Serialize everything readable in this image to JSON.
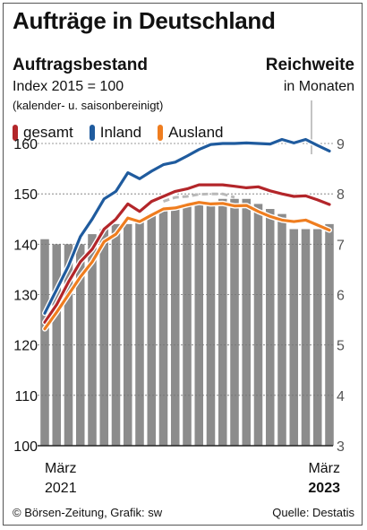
{
  "header": {
    "title": "Aufträge in Deutschland",
    "subtitle": "Auftragsbestand",
    "index_label": "Index 2015 = 100",
    "note": "(kalender- u. saisonbereinigt)",
    "reichweite_title": "Reichweite",
    "reichweite_sub": "in Monaten"
  },
  "legend": [
    {
      "label": "gesamt",
      "color": "#b3262a"
    },
    {
      "label": "Inland",
      "color": "#1f5b9e"
    },
    {
      "label": "Ausland",
      "color": "#ef7d1f"
    }
  ],
  "footer": {
    "source_left": "© Börsen-Zeitung, Grafik: sw",
    "source_right": "Quelle: Destatis"
  },
  "chart_data": {
    "type": "line",
    "x_start_label": "März\n2021",
    "x_end_label": "März\n2023",
    "x": [
      "2021-03",
      "2021-04",
      "2021-05",
      "2021-06",
      "2021-07",
      "2021-08",
      "2021-09",
      "2021-10",
      "2021-11",
      "2021-12",
      "2022-01",
      "2022-02",
      "2022-03",
      "2022-04",
      "2022-05",
      "2022-06",
      "2022-07",
      "2022-08",
      "2022-09",
      "2022-10",
      "2022-11",
      "2022-12",
      "2023-01",
      "2023-02",
      "2023-03"
    ],
    "left_axis": {
      "ylim": [
        100,
        160
      ],
      "ticks": [
        100,
        110,
        120,
        130,
        140,
        150,
        160
      ]
    },
    "right_axis": {
      "label": "Reichweite in Monaten",
      "ylim": [
        3,
        9
      ],
      "ticks": [
        3,
        4,
        5,
        6,
        7,
        8,
        9
      ]
    },
    "grid": true,
    "bars": {
      "name": "Reichweite in Monaten",
      "axis": "right",
      "color": "#8c8c8c",
      "values": [
        7.1,
        7.0,
        7.0,
        7.0,
        7.2,
        7.3,
        7.4,
        7.4,
        7.5,
        7.6,
        7.7,
        7.7,
        7.8,
        7.8,
        7.8,
        7.9,
        7.9,
        7.9,
        7.8,
        7.7,
        7.6,
        7.3,
        7.3,
        7.3,
        7.4
      ]
    },
    "series": [
      {
        "name": "gesamt",
        "color": "#b3262a",
        "values": [
          124.5,
          128,
          132.5,
          136.5,
          139,
          143,
          145,
          148,
          146.5,
          148.5,
          149.5,
          150.5,
          151,
          151.8,
          151.8,
          151.8,
          151.5,
          151.2,
          151.4,
          150.6,
          150,
          149.5,
          149.6,
          148.8,
          147.9
        ]
      },
      {
        "name": "Inland",
        "color": "#1f5b9e",
        "values": [
          126.3,
          131,
          135.7,
          141.5,
          145,
          149,
          150.5,
          154.2,
          153,
          154.5,
          155.8,
          156.3,
          157.5,
          158.8,
          159.8,
          160,
          160,
          160.1,
          160,
          159.9,
          160.8,
          160.1,
          160.8,
          159.6,
          158.5
        ]
      },
      {
        "name": "Ausland",
        "color": "#ef7d1f",
        "values": [
          123.2,
          126.5,
          130,
          133.5,
          136.5,
          140.5,
          142,
          145.2,
          144.5,
          145.8,
          147,
          147.2,
          147.8,
          148.3,
          148,
          148.1,
          147.6,
          147.7,
          146.5,
          145.5,
          144.8,
          144.5,
          144.8,
          143.8,
          142.8
        ]
      },
      {
        "name": "",
        "color": "#b9b9b9",
        "style": "dashed",
        "values": [
          null,
          null,
          null,
          null,
          null,
          null,
          null,
          null,
          null,
          null,
          148.5,
          149.3,
          149.5,
          149.9,
          150,
          150,
          149.3,
          null,
          null,
          null,
          null,
          null,
          null,
          null,
          null
        ]
      }
    ]
  }
}
